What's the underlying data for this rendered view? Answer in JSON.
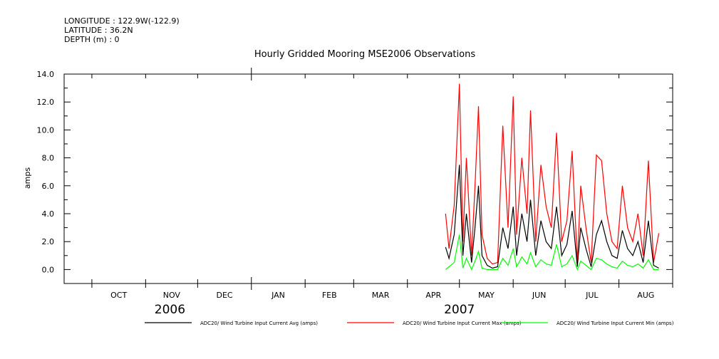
{
  "meta": {
    "longitude": "LONGITUDE : 122.9W(-122.9)",
    "latitude": "LATITUDE : 36.2N",
    "depth": "DEPTH (m) : 0"
  },
  "chart_data": {
    "type": "line",
    "title": "Hourly Gridded Mooring MSE2006 Observations",
    "ylabel": "amps",
    "xlabel": "",
    "ylim": [
      -1.0,
      14.0
    ],
    "yticks": [
      "14.0",
      "12.0",
      "10.0",
      "8.0",
      "6.0",
      "4.0",
      "2.0",
      "0.0"
    ],
    "x_range": [
      "2006-09-15",
      "2007-09-01"
    ],
    "month_labels": [
      "OCT",
      "NOV",
      "DEC",
      "JAN",
      "FEB",
      "MAR",
      "APR",
      "MAY",
      "JUN",
      "JUL",
      "AUG"
    ],
    "year_labels": [
      "2006",
      "2007"
    ],
    "series": [
      {
        "name": "ADC20/ Wind Turbine Input Current Avg (amps)",
        "color": "#000000",
        "x": [
          "2007-04-23",
          "2007-04-25",
          "2007-04-28",
          "2007-05-01",
          "2007-05-03",
          "2007-05-05",
          "2007-05-08",
          "2007-05-10",
          "2007-05-12",
          "2007-05-14",
          "2007-05-17",
          "2007-05-20",
          "2007-05-23",
          "2007-05-26",
          "2007-05-29",
          "2007-06-01",
          "2007-06-03",
          "2007-06-06",
          "2007-06-09",
          "2007-06-11",
          "2007-06-14",
          "2007-06-17",
          "2007-06-20",
          "2007-06-23",
          "2007-06-26",
          "2007-06-29",
          "2007-07-02",
          "2007-07-05",
          "2007-07-08",
          "2007-07-10",
          "2007-07-13",
          "2007-07-16",
          "2007-07-19",
          "2007-07-22",
          "2007-07-25",
          "2007-07-28",
          "2007-07-31",
          "2007-08-03",
          "2007-08-06",
          "2007-08-09",
          "2007-08-12",
          "2007-08-15",
          "2007-08-18",
          "2007-08-21",
          "2007-08-24"
        ],
        "values": [
          1.6,
          0.8,
          2.5,
          7.5,
          1.0,
          4.0,
          0.5,
          3.0,
          6.0,
          1.0,
          0.3,
          0.1,
          0.2,
          3.0,
          1.5,
          4.5,
          1.0,
          4.0,
          2.0,
          5.0,
          1.0,
          3.5,
          2.0,
          1.5,
          4.5,
          1.0,
          1.8,
          4.2,
          0.2,
          3.0,
          1.5,
          0.2,
          2.5,
          3.5,
          2.0,
          1.0,
          0.8,
          2.8,
          1.5,
          1.0,
          2.0,
          0.5,
          3.5,
          0.3,
          0.1
        ]
      },
      {
        "name": "ADC20/ Wind Turbine Input Current Max (amps)",
        "color": "#ff0000",
        "x": [
          "2007-04-23",
          "2007-04-25",
          "2007-04-28",
          "2007-05-01",
          "2007-05-03",
          "2007-05-05",
          "2007-05-08",
          "2007-05-10",
          "2007-05-12",
          "2007-05-14",
          "2007-05-17",
          "2007-05-20",
          "2007-05-23",
          "2007-05-26",
          "2007-05-29",
          "2007-06-01",
          "2007-06-03",
          "2007-06-06",
          "2007-06-09",
          "2007-06-11",
          "2007-06-14",
          "2007-06-17",
          "2007-06-20",
          "2007-06-23",
          "2007-06-26",
          "2007-06-29",
          "2007-07-02",
          "2007-07-05",
          "2007-07-08",
          "2007-07-10",
          "2007-07-13",
          "2007-07-16",
          "2007-07-19",
          "2007-07-22",
          "2007-07-25",
          "2007-07-28",
          "2007-07-31",
          "2007-08-03",
          "2007-08-06",
          "2007-08-09",
          "2007-08-12",
          "2007-08-15",
          "2007-08-18",
          "2007-08-21",
          "2007-08-24"
        ],
        "values": [
          4.0,
          1.5,
          4.6,
          13.3,
          2.0,
          8.0,
          1.0,
          6.0,
          11.7,
          2.5,
          0.8,
          0.4,
          0.5,
          10.3,
          3.0,
          12.4,
          2.5,
          8.0,
          4.0,
          11.4,
          2.0,
          7.5,
          4.5,
          3.0,
          9.8,
          2.0,
          3.5,
          8.5,
          0.5,
          6.0,
          3.0,
          0.5,
          8.2,
          7.8,
          4.0,
          2.0,
          1.5,
          6.0,
          3.0,
          2.0,
          4.0,
          1.0,
          7.8,
          0.5,
          2.6
        ]
      },
      {
        "name": "ADC20/ Wind Turbine Input Current Min (amps)",
        "color": "#00ff00",
        "x": [
          "2007-04-23",
          "2007-04-25",
          "2007-04-28",
          "2007-05-01",
          "2007-05-03",
          "2007-05-05",
          "2007-05-08",
          "2007-05-10",
          "2007-05-12",
          "2007-05-14",
          "2007-05-17",
          "2007-05-20",
          "2007-05-23",
          "2007-05-26",
          "2007-05-29",
          "2007-06-01",
          "2007-06-03",
          "2007-06-06",
          "2007-06-09",
          "2007-06-11",
          "2007-06-14",
          "2007-06-17",
          "2007-06-20",
          "2007-06-23",
          "2007-06-26",
          "2007-06-29",
          "2007-07-02",
          "2007-07-05",
          "2007-07-08",
          "2007-07-10",
          "2007-07-13",
          "2007-07-16",
          "2007-07-19",
          "2007-07-22",
          "2007-07-25",
          "2007-07-28",
          "2007-07-31",
          "2007-08-03",
          "2007-08-06",
          "2007-08-09",
          "2007-08-12",
          "2007-08-15",
          "2007-08-18",
          "2007-08-21",
          "2007-08-24"
        ],
        "values": [
          0.0,
          0.2,
          0.5,
          2.5,
          0.1,
          0.8,
          0.0,
          0.6,
          1.3,
          0.1,
          0.0,
          0.0,
          0.0,
          0.8,
          0.3,
          1.5,
          0.2,
          0.9,
          0.4,
          1.2,
          0.2,
          0.7,
          0.4,
          0.3,
          1.8,
          0.2,
          0.4,
          1.0,
          0.0,
          0.6,
          0.3,
          0.0,
          0.8,
          0.7,
          0.4,
          0.2,
          0.1,
          0.6,
          0.3,
          0.2,
          0.4,
          0.1,
          0.7,
          0.0,
          0.0
        ]
      }
    ]
  }
}
